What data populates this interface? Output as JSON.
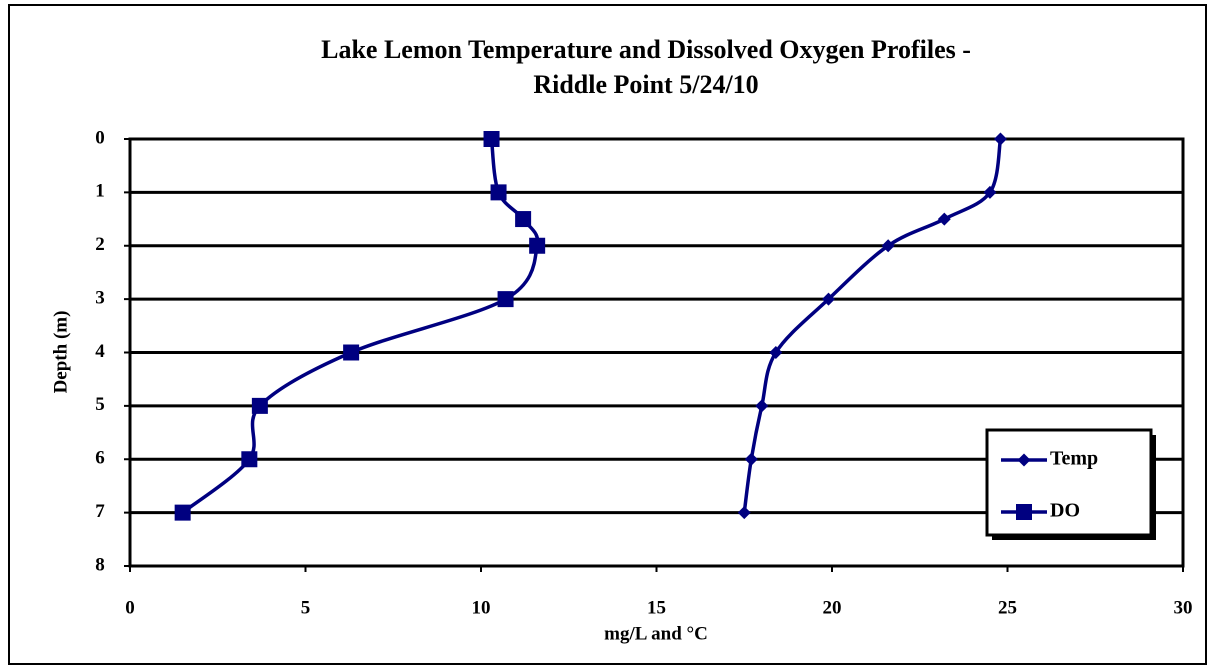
{
  "chart_data": {
    "type": "line",
    "title": [
      "Lake Lemon Temperature and Dissolved Oxygen Profiles -",
      "Riddle Point 5/24/10"
    ],
    "x_label": "mg/L and °C",
    "y_label": "Depth (m)",
    "xlim": [
      0,
      30
    ],
    "xticks": [
      0,
      5,
      10,
      15,
      20,
      25,
      30
    ],
    "ylim": [
      0,
      8
    ],
    "yticks": [
      0,
      1,
      2,
      3,
      4,
      5,
      6,
      7,
      8
    ],
    "y_reversed": true,
    "grid": true,
    "legend": "lower right",
    "smooth": true,
    "series": [
      {
        "name": "Temp",
        "color": "#000080",
        "marker": "diamond",
        "x": [
          24.8,
          24.5,
          23.2,
          21.6,
          19.9,
          18.4,
          18.0,
          17.7,
          17.5
        ],
        "values": [
          0,
          1,
          1.5,
          2,
          3,
          4,
          5,
          6,
          7
        ]
      },
      {
        "name": "DO",
        "color": "#000080",
        "marker": "square",
        "x": [
          10.3,
          10.5,
          11.2,
          11.6,
          10.7,
          6.3,
          3.7,
          3.4,
          1.5
        ],
        "values": [
          0,
          1,
          1.5,
          2,
          3,
          4,
          5,
          6,
          7
        ]
      }
    ]
  }
}
